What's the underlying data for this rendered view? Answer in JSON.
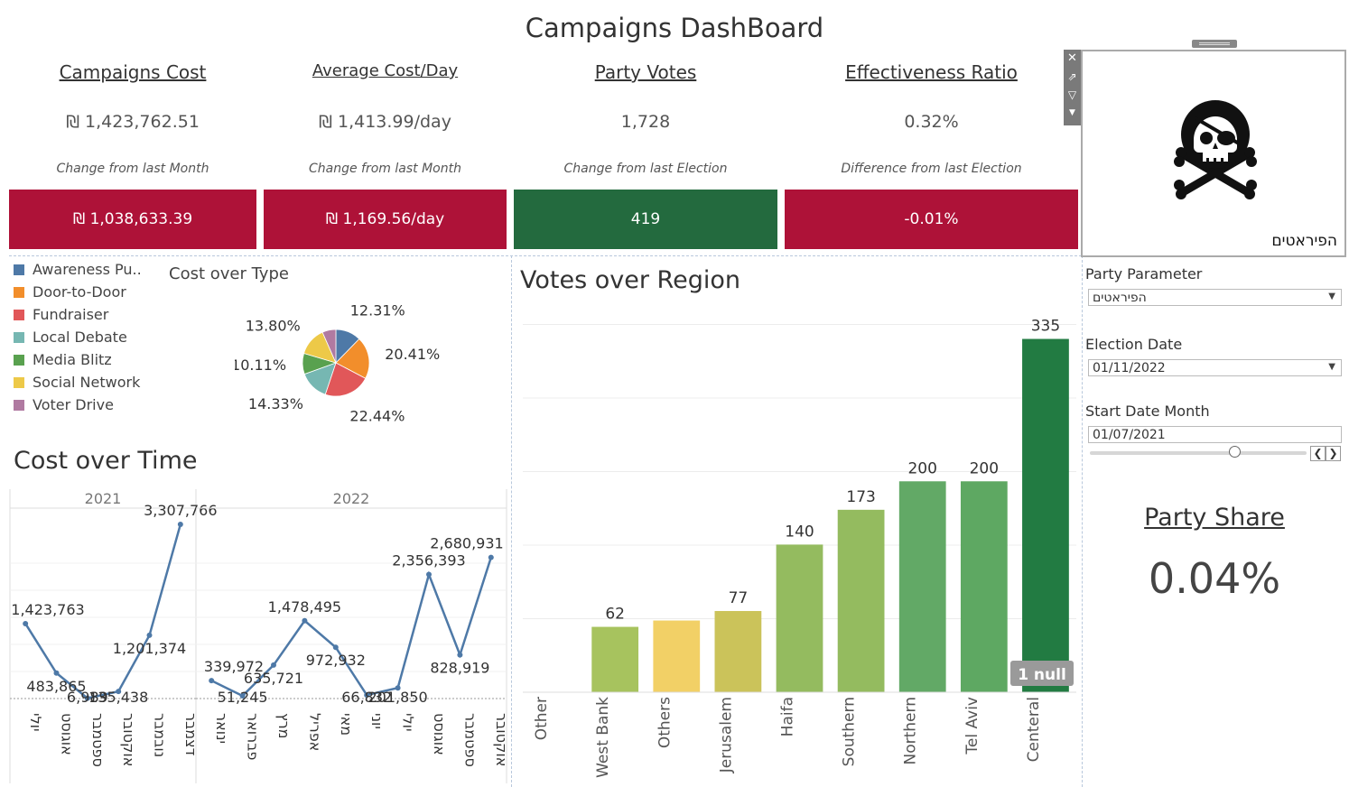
{
  "dashboard_title": "Campaigns DashBoard",
  "kpis": [
    {
      "header": "Campaigns Cost",
      "value": "₪ 1,423,762.51",
      "sublabel": "Change from last Month",
      "change": "₪ 1,038,633.39",
      "color": "#ae1238"
    },
    {
      "header": "Average Cost/Day",
      "value": "₪ 1,413.99/day",
      "sublabel": "Change from last Month",
      "change": "₪ 1,169.56/day",
      "color": "#ae1238"
    },
    {
      "header": "Party Votes",
      "value": "1,728",
      "sublabel": "Change from last Election",
      "change": "419",
      "color": "#236a3e"
    },
    {
      "header": "Effectiveness Ratio",
      "value": "0.32%",
      "sublabel": "Difference from last Election",
      "change": "-0.01%",
      "color": "#ae1238"
    }
  ],
  "party_card": {
    "name": "הפיראטים",
    "icon": "pirate-skull-icon"
  },
  "params": {
    "party_label": "Party Parameter",
    "party_value": "הפיראטים",
    "election_label": "Election Date",
    "election_value": "01/11/2022",
    "start_label": "Start Date  Month",
    "start_value": "01/07/2021"
  },
  "party_share": {
    "label": "Party Share",
    "value": "0.04%"
  },
  "chart_data": [
    {
      "type": "pie",
      "title": "Cost over Type",
      "legend": [
        {
          "label": "Awareness Pu..",
          "color": "#4e79a7"
        },
        {
          "label": "Door-to-Door",
          "color": "#f28e2b"
        },
        {
          "label": "Fundraiser",
          "color": "#e15759"
        },
        {
          "label": "Local Debate",
          "color": "#76b7b2"
        },
        {
          "label": "Media Blitz",
          "color": "#59a14f"
        },
        {
          "label": "Social Network",
          "color": "#edc948"
        },
        {
          "label": "Voter Drive",
          "color": "#b07aa1"
        }
      ],
      "slices": [
        {
          "label": "Awareness Pu..",
          "value": 12.31,
          "text": "12.31%",
          "color": "#4e79a7"
        },
        {
          "label": "Door-to-Door",
          "value": 20.41,
          "text": "20.41%",
          "color": "#f28e2b"
        },
        {
          "label": "Fundraiser",
          "value": 22.44,
          "text": "22.44%",
          "color": "#e15759"
        },
        {
          "label": "Local Debate",
          "value": 14.33,
          "text": "14.33%",
          "color": "#76b7b2"
        },
        {
          "label": "Media Blitz",
          "value": 10.11,
          "text": "10.11%",
          "color": "#59a14f"
        },
        {
          "label": "Social Network",
          "value": 13.8,
          "text": "13.80%",
          "color": "#edc948"
        },
        {
          "label": "Voter Drive",
          "value": 6.6,
          "text": "",
          "color": "#b07aa1"
        }
      ]
    },
    {
      "type": "line",
      "title": "Cost over Time",
      "ylim": [
        0,
        3600000
      ],
      "color": "#4e79a7",
      "panels": [
        {
          "year": "2021",
          "x": [
            "יולי",
            "אוגוסט",
            "ספטמבר",
            "אוקטובר",
            "נובמבר",
            "דצמבר"
          ],
          "values": [
            1423763,
            483865,
            6989,
            135438,
            1201374,
            3307766
          ],
          "labels": [
            "1,423,763",
            "483,865",
            "6,989",
            "135,438",
            "1,201,374",
            "3,307,766"
          ]
        },
        {
          "year": "2022",
          "x": [
            "ינואר",
            "פברואר",
            "מרץ",
            "אפריל",
            "מאי",
            "יוני",
            "יולי",
            "אוגוסט",
            "ספטמבר",
            "אוקטובר"
          ],
          "values": [
            339972,
            51245,
            635721,
            1478495,
            972932,
            66832,
            201850,
            2356393,
            828919,
            2680931
          ],
          "labels": [
            "339,972",
            "51,245",
            "635,721",
            "1,478,495",
            "972,932",
            "66,832",
            "201,850",
            "2,356,393",
            "828,919",
            "2,680,931"
          ]
        }
      ]
    },
    {
      "type": "bar",
      "title": "Votes over Region",
      "categories": [
        "Other",
        "West Bank",
        "Others",
        "Jerusalem",
        "Haifa",
        "Southern",
        "Northern",
        "Tel Aviv",
        "Centeral"
      ],
      "values": [
        0,
        62,
        68,
        77,
        140,
        173,
        200,
        200,
        335
      ],
      "labels": [
        "",
        "62",
        "",
        "77",
        "140",
        "173",
        "200",
        "200",
        "335"
      ],
      "colors": [
        "#a7c35e",
        "#a7c35e",
        "#f2d066",
        "#cbc35a",
        "#94bb5f",
        "#94bb5f",
        "#62a966",
        "#5ea862",
        "#227b42"
      ],
      "ylim": [
        0,
        350
      ],
      "null_badge": "1 null"
    }
  ]
}
